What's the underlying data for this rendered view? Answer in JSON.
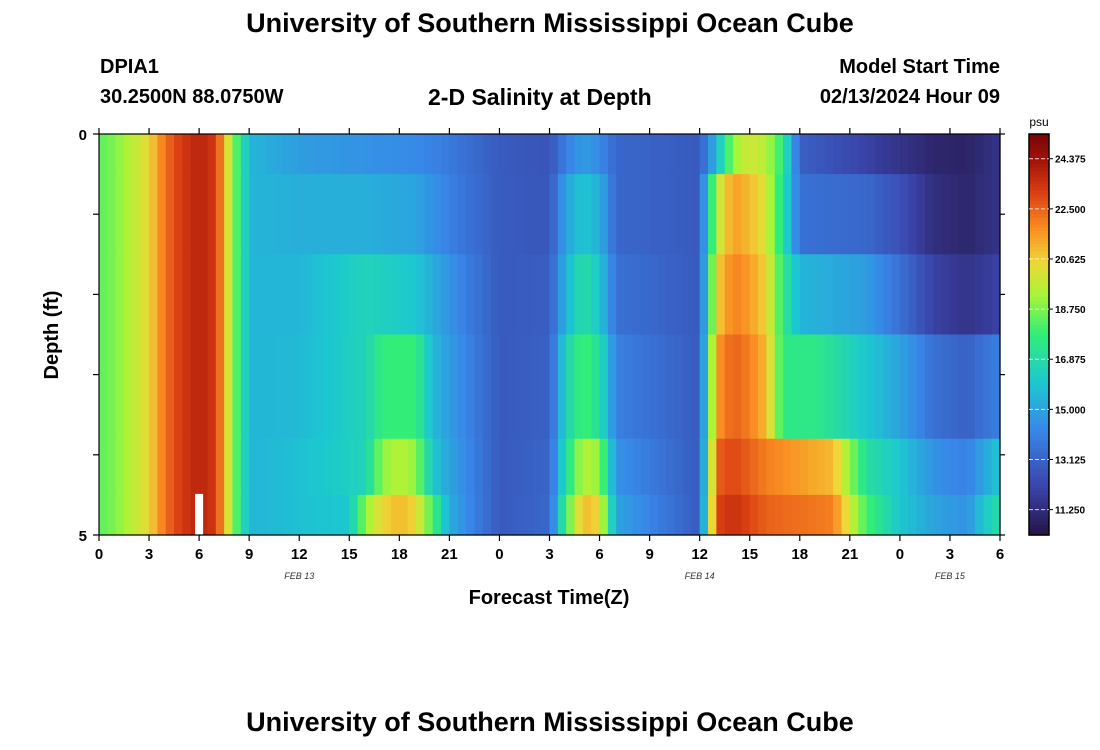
{
  "header": {
    "title": "University of Southern Mississippi Ocean Cube",
    "station": "DPIA1",
    "coordinates": "30.2500N  88.0750W",
    "subtitle": "2-D Salinity at Depth",
    "model_start_label": "Model Start Time",
    "model_start_time": "02/13/2024 Hour 09"
  },
  "footer": {
    "title": "University of Southern Mississippi Ocean Cube"
  },
  "chart_data": {
    "type": "heatmap",
    "title": "2-D Salinity at Depth",
    "xlabel": "Forecast Time(Z)",
    "ylabel": "Depth (ft)",
    "x_ticks": [
      "0",
      "3",
      "6",
      "9",
      "12",
      "15",
      "18",
      "21",
      "0",
      "3",
      "6",
      "9",
      "12",
      "15",
      "18",
      "21",
      "0",
      "3",
      "6"
    ],
    "x_day_labels": [
      {
        "label": "FEB 13",
        "hour": 12
      },
      {
        "label": "FEB 14",
        "hour": 36
      },
      {
        "label": "FEB 15",
        "hour": 51
      }
    ],
    "y_ticks": [
      "0",
      "5"
    ],
    "ylim": [
      0,
      5
    ],
    "x_hours": [
      0,
      54
    ],
    "colorbar": {
      "unit": "psu",
      "min": 10.3,
      "max": 25.3,
      "ticks": [
        "24.375",
        "22.500",
        "20.625",
        "18.750",
        "16.875",
        "15.000",
        "13.125",
        "11.250"
      ]
    },
    "marker_hour": 6,
    "rows": [
      {
        "depth_top": 0.0,
        "depth_bottom": 0.5,
        "key": [
          [
            0,
            18.3
          ],
          [
            1,
            18.8
          ],
          [
            2,
            19.6
          ],
          [
            3,
            20.5
          ],
          [
            4,
            22.3
          ],
          [
            5,
            23.3
          ],
          [
            6,
            23.8
          ],
          [
            7,
            23.3
          ],
          [
            8,
            19.0
          ],
          [
            9,
            15.5
          ],
          [
            12,
            14.8
          ],
          [
            16,
            14.5
          ],
          [
            19,
            14.3
          ],
          [
            21,
            13.8
          ],
          [
            24,
            12.8
          ],
          [
            27,
            12.6
          ],
          [
            28,
            14.0
          ],
          [
            29,
            14.8
          ],
          [
            30,
            14.3
          ],
          [
            31,
            13.2
          ],
          [
            36,
            12.8
          ],
          [
            37,
            15.5
          ],
          [
            38,
            19.0
          ],
          [
            39,
            20.0
          ],
          [
            40,
            19.5
          ],
          [
            41,
            17.5
          ],
          [
            42,
            13.0
          ],
          [
            46,
            12.0
          ],
          [
            50,
            11.0
          ],
          [
            52,
            10.9
          ],
          [
            54,
            11.5
          ]
        ]
      },
      {
        "depth_top": 0.5,
        "depth_bottom": 1.5,
        "key": [
          [
            0,
            18.3
          ],
          [
            1,
            18.8
          ],
          [
            2,
            19.6
          ],
          [
            3,
            20.5
          ],
          [
            4,
            22.3
          ],
          [
            5,
            23.3
          ],
          [
            6,
            23.8
          ],
          [
            7,
            23.3
          ],
          [
            8,
            19.0
          ],
          [
            9,
            15.5
          ],
          [
            12,
            15.3
          ],
          [
            16,
            15.3
          ],
          [
            19,
            15.0
          ],
          [
            21,
            14.0
          ],
          [
            24,
            12.8
          ],
          [
            27,
            12.7
          ],
          [
            28,
            15.0
          ],
          [
            29,
            16.0
          ],
          [
            30,
            15.3
          ],
          [
            31,
            13.2
          ],
          [
            36,
            12.8
          ],
          [
            37,
            19.5
          ],
          [
            38,
            21.5
          ],
          [
            39,
            21.0
          ],
          [
            40,
            20.0
          ],
          [
            41,
            17.0
          ],
          [
            42,
            13.5
          ],
          [
            46,
            13.2
          ],
          [
            48,
            12.5
          ],
          [
            50,
            11.3
          ],
          [
            52,
            11.0
          ],
          [
            54,
            11.5
          ]
        ]
      },
      {
        "depth_top": 1.5,
        "depth_bottom": 2.5,
        "key": [
          [
            0,
            18.3
          ],
          [
            1,
            18.8
          ],
          [
            2,
            19.6
          ],
          [
            3,
            20.5
          ],
          [
            4,
            22.3
          ],
          [
            5,
            23.3
          ],
          [
            6,
            23.8
          ],
          [
            7,
            23.3
          ],
          [
            8,
            19.0
          ],
          [
            9,
            15.5
          ],
          [
            12,
            15.5
          ],
          [
            16,
            16.5
          ],
          [
            19,
            16.0
          ],
          [
            21,
            14.5
          ],
          [
            24,
            12.8
          ],
          [
            27,
            12.9
          ],
          [
            28,
            15.5
          ],
          [
            29,
            17.0
          ],
          [
            30,
            16.0
          ],
          [
            31,
            13.5
          ],
          [
            36,
            12.8
          ],
          [
            37,
            20.5
          ],
          [
            38,
            22.0
          ],
          [
            39,
            21.5
          ],
          [
            40,
            20.5
          ],
          [
            41,
            17.5
          ],
          [
            42,
            15.5
          ],
          [
            46,
            14.8
          ],
          [
            48,
            13.5
          ],
          [
            50,
            12.0
          ],
          [
            52,
            11.5
          ],
          [
            54,
            12.0
          ]
        ]
      },
      {
        "depth_top": 2.5,
        "depth_bottom": 3.8,
        "key": [
          [
            0,
            18.3
          ],
          [
            1,
            18.8
          ],
          [
            2,
            19.6
          ],
          [
            3,
            20.5
          ],
          [
            4,
            22.3
          ],
          [
            5,
            23.3
          ],
          [
            6,
            23.8
          ],
          [
            7,
            23.3
          ],
          [
            8,
            19.0
          ],
          [
            9,
            15.5
          ],
          [
            12,
            15.6
          ],
          [
            16,
            16.5
          ],
          [
            17,
            17.8
          ],
          [
            19,
            17.8
          ],
          [
            20,
            15.5
          ],
          [
            21,
            14.8
          ],
          [
            24,
            12.8
          ],
          [
            27,
            13.0
          ],
          [
            28,
            16.5
          ],
          [
            29,
            18.0
          ],
          [
            30,
            17.0
          ],
          [
            31,
            14.0
          ],
          [
            36,
            12.8
          ],
          [
            37,
            21.5
          ],
          [
            38,
            22.5
          ],
          [
            39,
            22.0
          ],
          [
            40,
            21.0
          ],
          [
            41,
            17.5
          ],
          [
            43,
            17.5
          ],
          [
            46,
            16.0
          ],
          [
            48,
            15.0
          ],
          [
            50,
            13.5
          ],
          [
            52,
            13.0
          ],
          [
            54,
            14.0
          ]
        ]
      },
      {
        "depth_top": 3.8,
        "depth_bottom": 4.5,
        "key": [
          [
            0,
            18.3
          ],
          [
            1,
            18.8
          ],
          [
            2,
            19.6
          ],
          [
            3,
            20.5
          ],
          [
            4,
            22.3
          ],
          [
            5,
            23.3
          ],
          [
            6,
            23.8
          ],
          [
            7,
            23.3
          ],
          [
            8,
            19.0
          ],
          [
            9,
            15.5
          ],
          [
            12,
            15.8
          ],
          [
            16,
            16.5
          ],
          [
            17,
            19.0
          ],
          [
            18,
            19.5
          ],
          [
            19,
            19.0
          ],
          [
            20,
            16.0
          ],
          [
            21,
            15.0
          ],
          [
            24,
            12.8
          ],
          [
            27,
            13.1
          ],
          [
            28,
            17.0
          ],
          [
            29,
            19.5
          ],
          [
            30,
            19.0
          ],
          [
            31,
            14.5
          ],
          [
            36,
            12.8
          ],
          [
            37,
            22.5
          ],
          [
            38,
            23.0
          ],
          [
            39,
            22.5
          ],
          [
            40,
            22.0
          ],
          [
            44,
            21.0
          ],
          [
            45,
            19.0
          ],
          [
            46,
            17.0
          ],
          [
            48,
            16.0
          ],
          [
            50,
            14.5
          ],
          [
            52,
            14.0
          ],
          [
            53,
            15.0
          ],
          [
            54,
            16.0
          ]
        ]
      },
      {
        "depth_top": 4.5,
        "depth_bottom": 5.0,
        "key": [
          [
            0,
            18.3
          ],
          [
            1,
            18.8
          ],
          [
            2,
            19.6
          ],
          [
            3,
            20.5
          ],
          [
            4,
            22.3
          ],
          [
            5,
            23.3
          ],
          [
            6,
            23.8
          ],
          [
            7,
            23.3
          ],
          [
            8,
            19.0
          ],
          [
            9,
            15.5
          ],
          [
            12,
            15.8
          ],
          [
            15,
            16.0
          ],
          [
            16,
            19.0
          ],
          [
            17,
            20.5
          ],
          [
            18,
            21.0
          ],
          [
            19,
            20.5
          ],
          [
            20,
            18.0
          ],
          [
            21,
            15.2
          ],
          [
            24,
            12.8
          ],
          [
            27,
            13.2
          ],
          [
            28,
            18.0
          ],
          [
            29,
            21.0
          ],
          [
            30,
            20.5
          ],
          [
            31,
            15.0
          ],
          [
            36,
            12.8
          ],
          [
            37,
            23.0
          ],
          [
            38,
            23.5
          ],
          [
            39,
            23.0
          ],
          [
            40,
            22.5
          ],
          [
            44,
            22.0
          ],
          [
            45,
            20.0
          ],
          [
            46,
            18.0
          ],
          [
            48,
            16.0
          ],
          [
            50,
            15.0
          ],
          [
            52,
            14.5
          ],
          [
            53,
            16.0
          ],
          [
            54,
            17.0
          ]
        ]
      }
    ]
  }
}
